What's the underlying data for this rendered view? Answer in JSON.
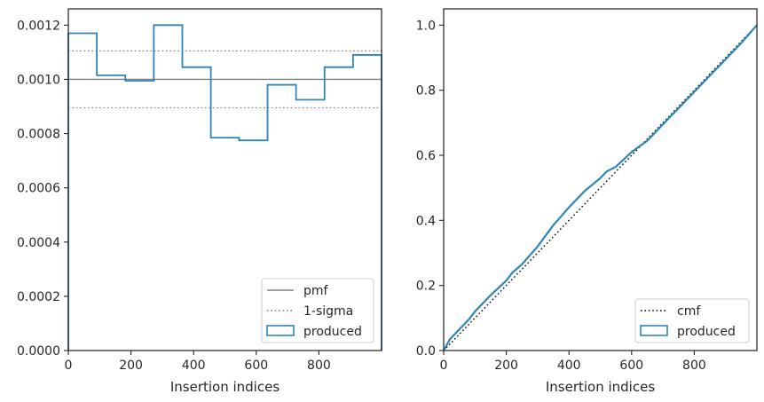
{
  "chart_data": [
    {
      "type": "line",
      "xlabel": "Insertion indices",
      "ylabel": "",
      "xlim": [
        0,
        1000
      ],
      "ylim": [
        0,
        0.00126
      ],
      "xticks": [
        0,
        200,
        400,
        600,
        800
      ],
      "yticks": [
        0.0,
        0.0002,
        0.0004,
        0.0006,
        0.0008,
        0.001,
        0.0012
      ],
      "xtick_labels": [
        "0",
        "200",
        "400",
        "600",
        "800"
      ],
      "ytick_labels": [
        "0.0000",
        "0.0002",
        "0.0004",
        "0.0006",
        "0.0008",
        "0.0010",
        "0.0012"
      ],
      "grid": false,
      "legend": "lower-right",
      "series": [
        {
          "name": "pmf",
          "style": "solid",
          "color": "#808080",
          "value": 0.001
        },
        {
          "name": "1-sigma",
          "style": "dotted",
          "color": "#808080",
          "values": [
            0.001105,
            0.000895
          ]
        },
        {
          "name": "produced",
          "style": "step-histogram",
          "color": "#2e86b8",
          "bin_edges": [
            0,
            91,
            182,
            273,
            364,
            455,
            545,
            636,
            727,
            818,
            909,
            1000
          ],
          "values": [
            0.00117,
            0.001015,
            0.000995,
            0.0012,
            0.001045,
            0.000785,
            0.000775,
            0.00098,
            0.000925,
            0.001045,
            0.00109
          ]
        }
      ]
    },
    {
      "type": "line",
      "xlabel": "Insertion indices",
      "ylabel": "",
      "xlim": [
        0,
        1000
      ],
      "ylim": [
        0,
        1.05
      ],
      "xticks": [
        0,
        200,
        400,
        600,
        800
      ],
      "yticks": [
        0.0,
        0.2,
        0.4,
        0.6,
        0.8,
        1.0
      ],
      "xtick_labels": [
        "0",
        "200",
        "400",
        "600",
        "800"
      ],
      "ytick_labels": [
        "0.0",
        "0.2",
        "0.4",
        "0.6",
        "0.8",
        "1.0"
      ],
      "grid": false,
      "legend": "lower-right",
      "series": [
        {
          "name": "cmf",
          "style": "dotted",
          "color": "#000000",
          "x": [
            0,
            1000
          ],
          "y": [
            0,
            1.0
          ]
        },
        {
          "name": "produced",
          "style": "solid",
          "color": "#2e86b8",
          "x": [
            0,
            20,
            50,
            80,
            100,
            150,
            200,
            220,
            250,
            300,
            350,
            400,
            450,
            500,
            520,
            550,
            600,
            650,
            700,
            750,
            800,
            850,
            900,
            950,
            1000
          ],
          "y": [
            0,
            0.035,
            0.065,
            0.095,
            0.12,
            0.17,
            0.215,
            0.24,
            0.265,
            0.32,
            0.385,
            0.44,
            0.49,
            0.53,
            0.55,
            0.565,
            0.61,
            0.645,
            0.695,
            0.745,
            0.795,
            0.845,
            0.895,
            0.945,
            1.0
          ]
        }
      ]
    }
  ]
}
